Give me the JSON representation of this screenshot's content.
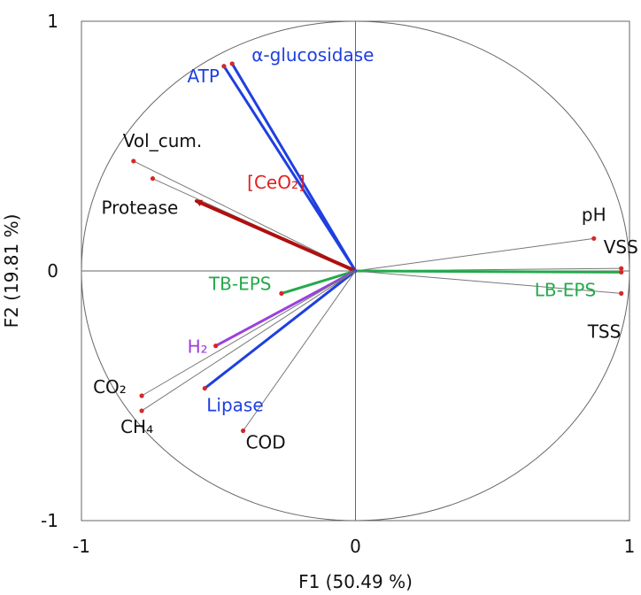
{
  "chart_data": {
    "type": "scatter",
    "subtype": "pca-correlation-circle",
    "xlabel": "F1 (50.49 %)",
    "ylabel": "F2 (19.81 %)",
    "xlim": [
      -1,
      1
    ],
    "ylim": [
      -1,
      1
    ],
    "x_ticks": [
      "-1",
      "0",
      "1"
    ],
    "y_ticks": [
      "1",
      "0",
      "-1"
    ],
    "grid": false,
    "unit_circle": true,
    "colors": {
      "black": "#111111",
      "point": "#d62728",
      "blue": "#1f3fe0",
      "red": "#e02020",
      "darkred": "#b01010",
      "green": "#22aa4a",
      "purple": "#9b3fe0",
      "gray_line": "#777777",
      "frame": "#666666"
    },
    "variables": [
      {
        "label": "α-glucosidase",
        "x": -0.45,
        "y": 0.83,
        "arrow": "thick",
        "color": "blue",
        "label_color": "blue"
      },
      {
        "label": "ATP",
        "x": -0.48,
        "y": 0.82,
        "arrow": "thick",
        "color": "blue",
        "label_color": "blue"
      },
      {
        "label": "Vol_cum.",
        "x": -0.81,
        "y": 0.44,
        "arrow": "thin",
        "color": "gray_line",
        "label_color": "black"
      },
      {
        "label": "Protease",
        "x": -0.74,
        "y": 0.37,
        "arrow": "thin",
        "color": "gray_line",
        "label_color": "black"
      },
      {
        "label": "[CeO₂]",
        "x": -0.58,
        "y": 0.28,
        "arrow": "thick-head",
        "color": "darkred",
        "label_color": "red"
      },
      {
        "label": "pH",
        "x": 0.87,
        "y": 0.13,
        "arrow": "thin",
        "color": "gray_line",
        "label_color": "black"
      },
      {
        "label": "VSS",
        "x": 0.97,
        "y": 0.01,
        "arrow": "thin",
        "color": "gray_line",
        "label_color": "black"
      },
      {
        "label": "LB-EPS",
        "x": 0.97,
        "y": -0.005,
        "arrow": "thick",
        "color": "green",
        "label_color": "green"
      },
      {
        "label": "TSS",
        "x": 0.97,
        "y": -0.09,
        "arrow": "thin",
        "color": "gray_line",
        "label_color": "black"
      },
      {
        "label": "TB-EPS",
        "x": -0.27,
        "y": -0.09,
        "arrow": "thick",
        "color": "green",
        "label_color": "green"
      },
      {
        "label": "H₂",
        "x": -0.51,
        "y": -0.3,
        "arrow": "thick",
        "color": "purple",
        "label_color": "purple"
      },
      {
        "label": "Lipase",
        "x": -0.55,
        "y": -0.47,
        "arrow": "thick",
        "color": "blue",
        "label_color": "blue"
      },
      {
        "label": "CO₂",
        "x": -0.78,
        "y": -0.5,
        "arrow": "thin",
        "color": "gray_line",
        "label_color": "black"
      },
      {
        "label": "CH₄",
        "x": -0.78,
        "y": -0.56,
        "arrow": "thin",
        "color": "gray_line",
        "label_color": "black"
      },
      {
        "label": "COD",
        "x": -0.41,
        "y": -0.64,
        "arrow": "thin",
        "color": "gray_line",
        "label_color": "black"
      }
    ]
  }
}
